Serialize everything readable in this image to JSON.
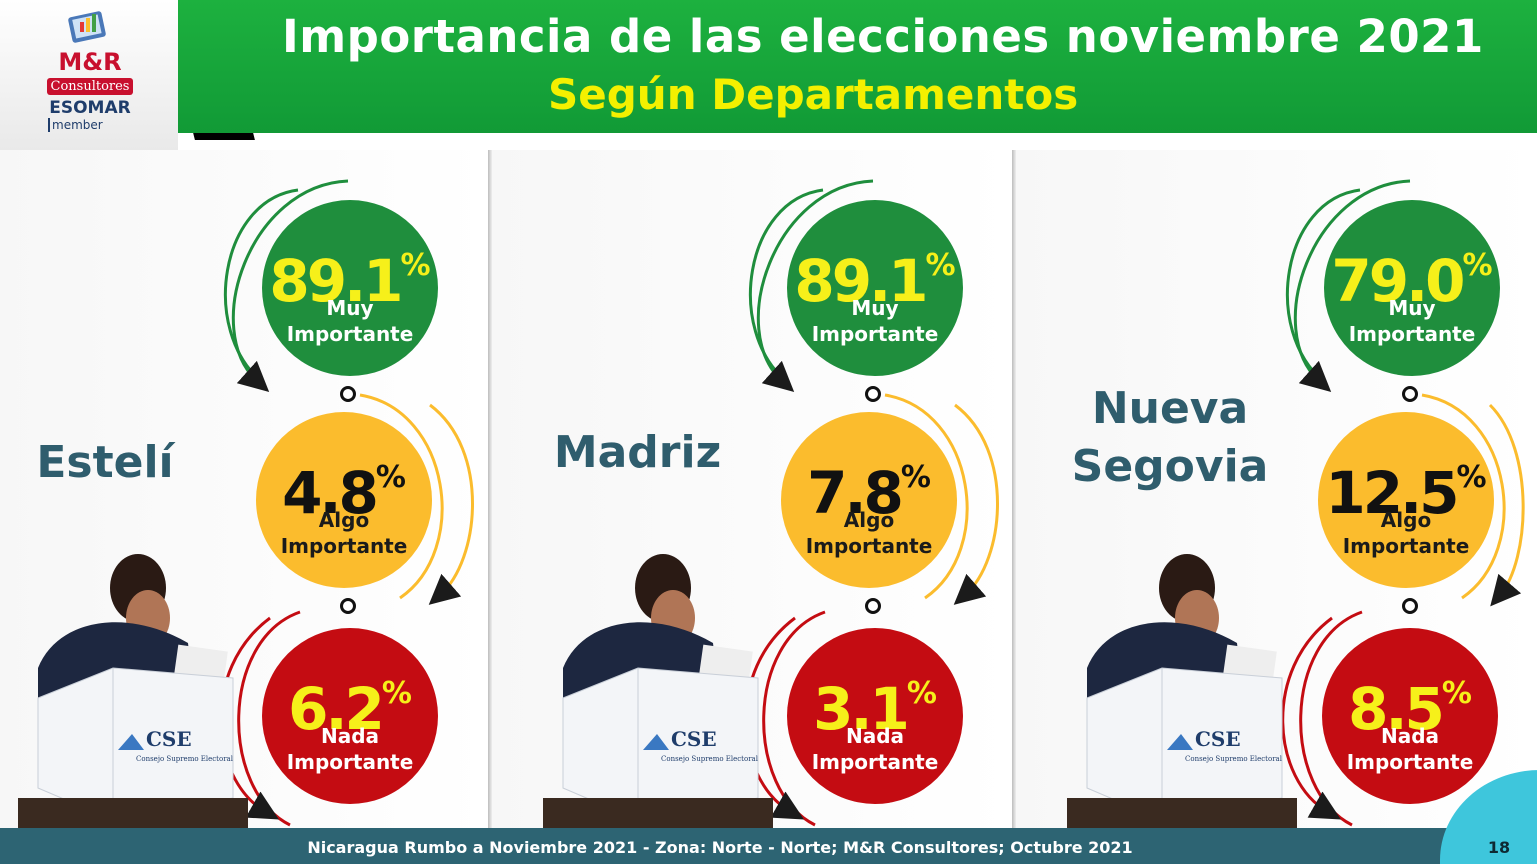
{
  "header": {
    "title": "Importancia de las elecciones noviembre 2021",
    "subtitle": "Según Departamentos"
  },
  "logo": {
    "brand": "M&R",
    "consultores": "Consultores",
    "esomar": "ESOMAR",
    "member": "member"
  },
  "departments": [
    {
      "name_line1": "Estelí",
      "name_line2": "",
      "muy": {
        "value": "89.1",
        "unit": "%",
        "label1": "Muy",
        "label2": "Importante"
      },
      "algo": {
        "value": "4.8",
        "unit": "%",
        "label1": "Algo",
        "label2": "Importante"
      },
      "nada": {
        "value": "6.2",
        "unit": "%",
        "label1": "Nada",
        "label2": "Importante"
      }
    },
    {
      "name_line1": "Madriz",
      "name_line2": "",
      "muy": {
        "value": "89.1",
        "unit": "%",
        "label1": "Muy",
        "label2": "Importante"
      },
      "algo": {
        "value": "7.8",
        "unit": "%",
        "label1": "Algo",
        "label2": "Importante"
      },
      "nada": {
        "value": "3.1",
        "unit": "%",
        "label1": "Nada",
        "label2": "Importante"
      }
    },
    {
      "name_line1": "Nueva",
      "name_line2": "Segovia",
      "muy": {
        "value": "79.0",
        "unit": "%",
        "label1": "Muy",
        "label2": "Importante"
      },
      "algo": {
        "value": "12.5",
        "unit": "%",
        "label1": "Algo",
        "label2": "Importante"
      },
      "nada": {
        "value": "8.5",
        "unit": "%",
        "label1": "Nada",
        "label2": "Importante"
      }
    }
  ],
  "booth_label": "CSE",
  "booth_sublabel": "Consejo Supremo Electoral",
  "footer": {
    "text": "Nicaragua Rumbo a Noviembre 2021 - Zona: Norte - Norte; M&R Consultores; Octubre 2021",
    "page": "18"
  },
  "colors": {
    "header_green": "#1db13f",
    "subtitle_yellow": "#f4f000",
    "muy_green": "#1f8e3d",
    "algo_yellow": "#fbbc2d",
    "nada_red": "#c40c12",
    "dept_text": "#2f5d6d",
    "footer_bg": "#2d6473"
  }
}
